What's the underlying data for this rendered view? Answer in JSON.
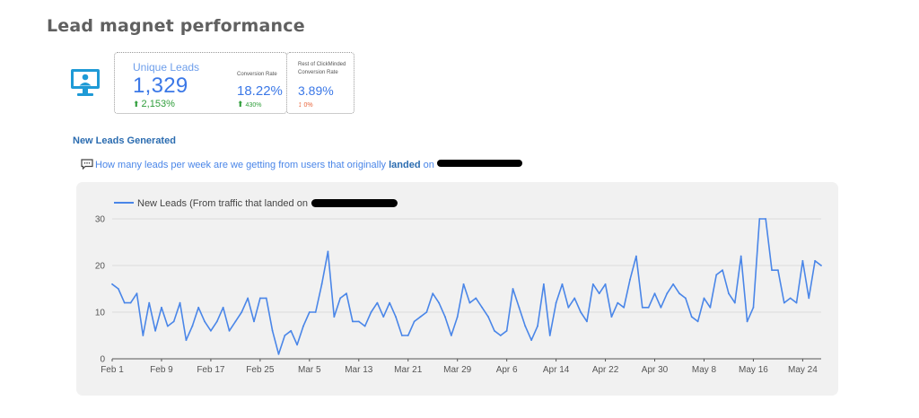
{
  "page": {
    "title": "Lead magnet performance"
  },
  "scorecard": {
    "unique_leads_label": "Unique Leads",
    "unique_leads_value": "1,329",
    "unique_leads_change": "2,153%",
    "conversion_label": "Conversion Rate",
    "conversion_value": "18.22%",
    "conversion_change": "430%",
    "rest_label_line1": "Rest of ClickMinded",
    "rest_label_line2": "Conversion Rate",
    "rest_value": "3.89%",
    "rest_change": "0%"
  },
  "section": {
    "title": "New Leads Generated",
    "question_prefix": "How many leads per week are we getting from users that originally",
    "question_bold": "landed",
    "question_suffix": "on"
  },
  "icons": {
    "monitor": "monitor-user-icon",
    "comment": "comment-icon"
  },
  "colors": {
    "accent": "#4a86e8",
    "positive": "#2e9d3a",
    "negative": "#e8643a",
    "panel": "#f1f1f1"
  },
  "chart_data": {
    "type": "line",
    "legend_position": "top-left",
    "grid": true,
    "ylim": [
      0,
      30
    ],
    "y_ticks": [
      0,
      10,
      20,
      30
    ],
    "x_tick_labels": [
      "Feb 1",
      "Feb 9",
      "Feb 17",
      "Feb 25",
      "Mar 5",
      "Mar 13",
      "Mar 21",
      "Mar 29",
      "Apr 6",
      "Apr 14",
      "Apr 22",
      "Apr 30",
      "May 8",
      "May 16",
      "May 24"
    ],
    "series": [
      {
        "name": "New Leads (From traffic that landed on",
        "color": "#4a86e8",
        "values": [
          16,
          15,
          12,
          12,
          14,
          5,
          12,
          6,
          11,
          7,
          8,
          12,
          4,
          7,
          11,
          8,
          6,
          8,
          11,
          6,
          8,
          10,
          13,
          8,
          13,
          13,
          6,
          1,
          5,
          6,
          3,
          7,
          10,
          10,
          16,
          23,
          9,
          13,
          14,
          8,
          8,
          7,
          10,
          12,
          9,
          12,
          9,
          5,
          5,
          8,
          9,
          10,
          14,
          12,
          9,
          5,
          9,
          16,
          12,
          13,
          11,
          9,
          6,
          5,
          6,
          15,
          11,
          7,
          4,
          7,
          16,
          5,
          12,
          16,
          11,
          13,
          10,
          8,
          16,
          14,
          16,
          9,
          12,
          11,
          17,
          22,
          11,
          11,
          14,
          11,
          14,
          16,
          14,
          13,
          9,
          8,
          13,
          11,
          18,
          19,
          14,
          12,
          22,
          8,
          11,
          30,
          30,
          19,
          19,
          12,
          13,
          12,
          21,
          13,
          21,
          20
        ]
      }
    ]
  }
}
